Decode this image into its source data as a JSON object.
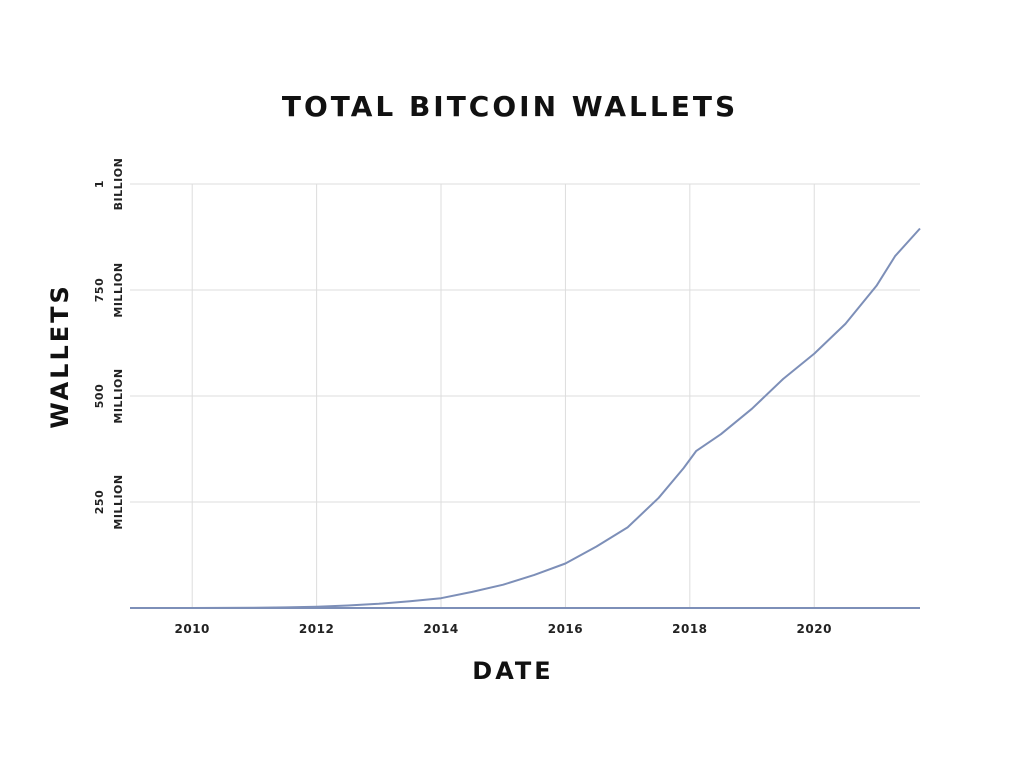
{
  "chart_data": {
    "type": "line",
    "title": "TOTAL BITCOIN WALLETS",
    "xlabel": "DATE",
    "ylabel": "WALLETS",
    "xlim": [
      2009.0,
      2021.7
    ],
    "ylim": [
      0,
      1000000000
    ],
    "x_ticks": [
      {
        "value": 2010,
        "label": "2010"
      },
      {
        "value": 2012,
        "label": "2012"
      },
      {
        "value": 2014,
        "label": "2014"
      },
      {
        "value": 2016,
        "label": "2016"
      },
      {
        "value": 2018,
        "label": "2018"
      },
      {
        "value": 2020,
        "label": "2020"
      }
    ],
    "y_ticks": [
      {
        "value": 250000000,
        "line1": "250",
        "line2": "MILLION"
      },
      {
        "value": 500000000,
        "line1": "500",
        "line2": "MILLION"
      },
      {
        "value": 750000000,
        "line1": "750",
        "line2": "MILLION"
      },
      {
        "value": 1000000000,
        "line1": "1",
        "line2": "BILLION"
      }
    ],
    "grid": true,
    "legend": "none",
    "series": [
      {
        "color": "#7d8fb8",
        "x": [
          2009.0,
          2010.0,
          2011.0,
          2011.5,
          2012.0,
          2012.5,
          2013.0,
          2013.5,
          2014.0,
          2014.5,
          2015.0,
          2015.5,
          2016.0,
          2016.5,
          2017.0,
          2017.5,
          2017.9,
          2018.1,
          2018.5,
          2019.0,
          2019.5,
          2020.0,
          2020.5,
          2021.0,
          2021.3,
          2021.7
        ],
        "y": [
          0,
          0,
          500000,
          1500000,
          3000000,
          6000000,
          10000000,
          16000000,
          23000000,
          38000000,
          55000000,
          78000000,
          105000000,
          145000000,
          190000000,
          260000000,
          330000000,
          370000000,
          410000000,
          470000000,
          540000000,
          600000000,
          670000000,
          760000000,
          830000000,
          895000000
        ]
      }
    ]
  }
}
